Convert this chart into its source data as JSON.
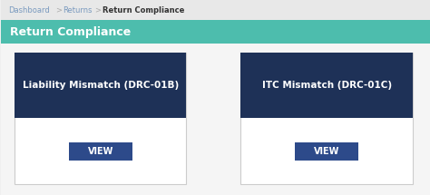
{
  "bg_color": "#f0f0f0",
  "breadcrumb_bg": "#e8e8e8",
  "breadcrumb_text": "Dashboard  >  Returns  >  Return Compliance",
  "breadcrumb_color_dash": "#888888",
  "breadcrumb_color_active": "#333333",
  "header_bg": "#4dbdad",
  "header_text": "Return Compliance",
  "header_text_color": "#ffffff",
  "card_bg": "#ffffff",
  "card_border_color": "#cccccc",
  "card_title_bg": "#1e3157",
  "card_title_color": "#ffffff",
  "button_bg": "#2d4a8a",
  "button_text_color": "#ffffff",
  "cards": [
    {
      "title": "Liability Mismatch (DRC-01B)",
      "button": "VIEW"
    },
    {
      "title": "ITC Mismatch (DRC-01C)",
      "button": "VIEW"
    }
  ]
}
